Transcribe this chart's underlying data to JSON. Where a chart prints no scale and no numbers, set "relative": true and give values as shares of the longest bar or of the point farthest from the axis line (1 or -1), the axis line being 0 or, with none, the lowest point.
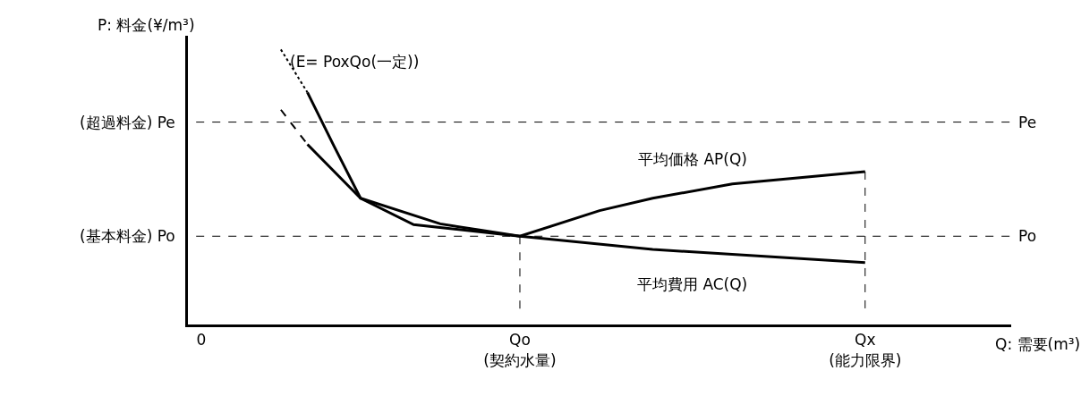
{
  "chart_data": {
    "type": "line",
    "relative": true,
    "ylabel": "P: 料金(¥/m³)",
    "xlabel": "Q: 需要(m³)",
    "categories": [
      "0",
      null,
      null,
      null,
      null,
      null,
      null,
      null,
      null,
      null,
      null,
      null,
      "Qo\n(契約水量)",
      null,
      null,
      null,
      null,
      null,
      null,
      null,
      null,
      null,
      null,
      null,
      null,
      "Qx\n(能力限界)",
      null,
      null,
      null,
      null,
      null
    ],
    "series": [
      {
        "name": "(E= PoxQo(一定))",
        "color": "#000000",
        "line_style": "dotted",
        "values": [
          null,
          null,
          null,
          1.0,
          0.844,
          null,
          null,
          null,
          null,
          null,
          null,
          null,
          null,
          null,
          null,
          null,
          null,
          null,
          null,
          null,
          null,
          null,
          null,
          null,
          null,
          null,
          null,
          null,
          null,
          null,
          null
        ]
      },
      {
        "name": "平均価格 AP(Q)",
        "color": "#000000",
        "line_style": "solid",
        "values": [
          null,
          null,
          null,
          null,
          0.844,
          0.649,
          0.459,
          null,
          null,
          0.366,
          null,
          null,
          0.321,
          null,
          null,
          0.414,
          null,
          0.459,
          null,
          null,
          0.511,
          null,
          null,
          null,
          null,
          0.556,
          null,
          null,
          null,
          null,
          null
        ]
      },
      {
        "color": "#000000",
        "line_style": "dashed",
        "values": [
          null,
          null,
          null,
          0.781,
          0.655,
          null,
          null,
          null,
          null,
          null,
          null,
          null,
          null,
          null,
          null,
          null,
          null,
          null,
          null,
          null,
          null,
          null,
          null,
          null,
          null,
          null,
          null,
          null,
          null,
          null,
          null
        ]
      },
      {
        "name": "平均費用 AC(Q)",
        "color": "#000000",
        "line_style": "solid",
        "values": [
          null,
          null,
          null,
          null,
          0.655,
          null,
          0.459,
          null,
          0.363,
          null,
          null,
          null,
          0.321,
          null,
          null,
          null,
          null,
          0.273,
          null,
          null,
          null,
          null,
          null,
          null,
          null,
          0.225,
          null,
          null,
          null,
          null,
          null
        ]
      }
    ],
    "ref_lines": [
      {
        "axis": "y",
        "value": 0.736,
        "label": "(超過料金) Pe",
        "line_style": "dashed"
      },
      {
        "axis": "y",
        "value": 0.321,
        "label": "(基本料金) Po",
        "line_style": "dashed"
      },
      {
        "axis": "x",
        "value": "Qo\n(契約水量)",
        "line_style": "dashed"
      },
      {
        "axis": "x",
        "value": "Qx\n(能力限界)",
        "line_style": "dashed"
      }
    ],
    "annotations": [
      "Pe",
      "Po"
    ],
    "grid": false,
    "legend": false
  }
}
